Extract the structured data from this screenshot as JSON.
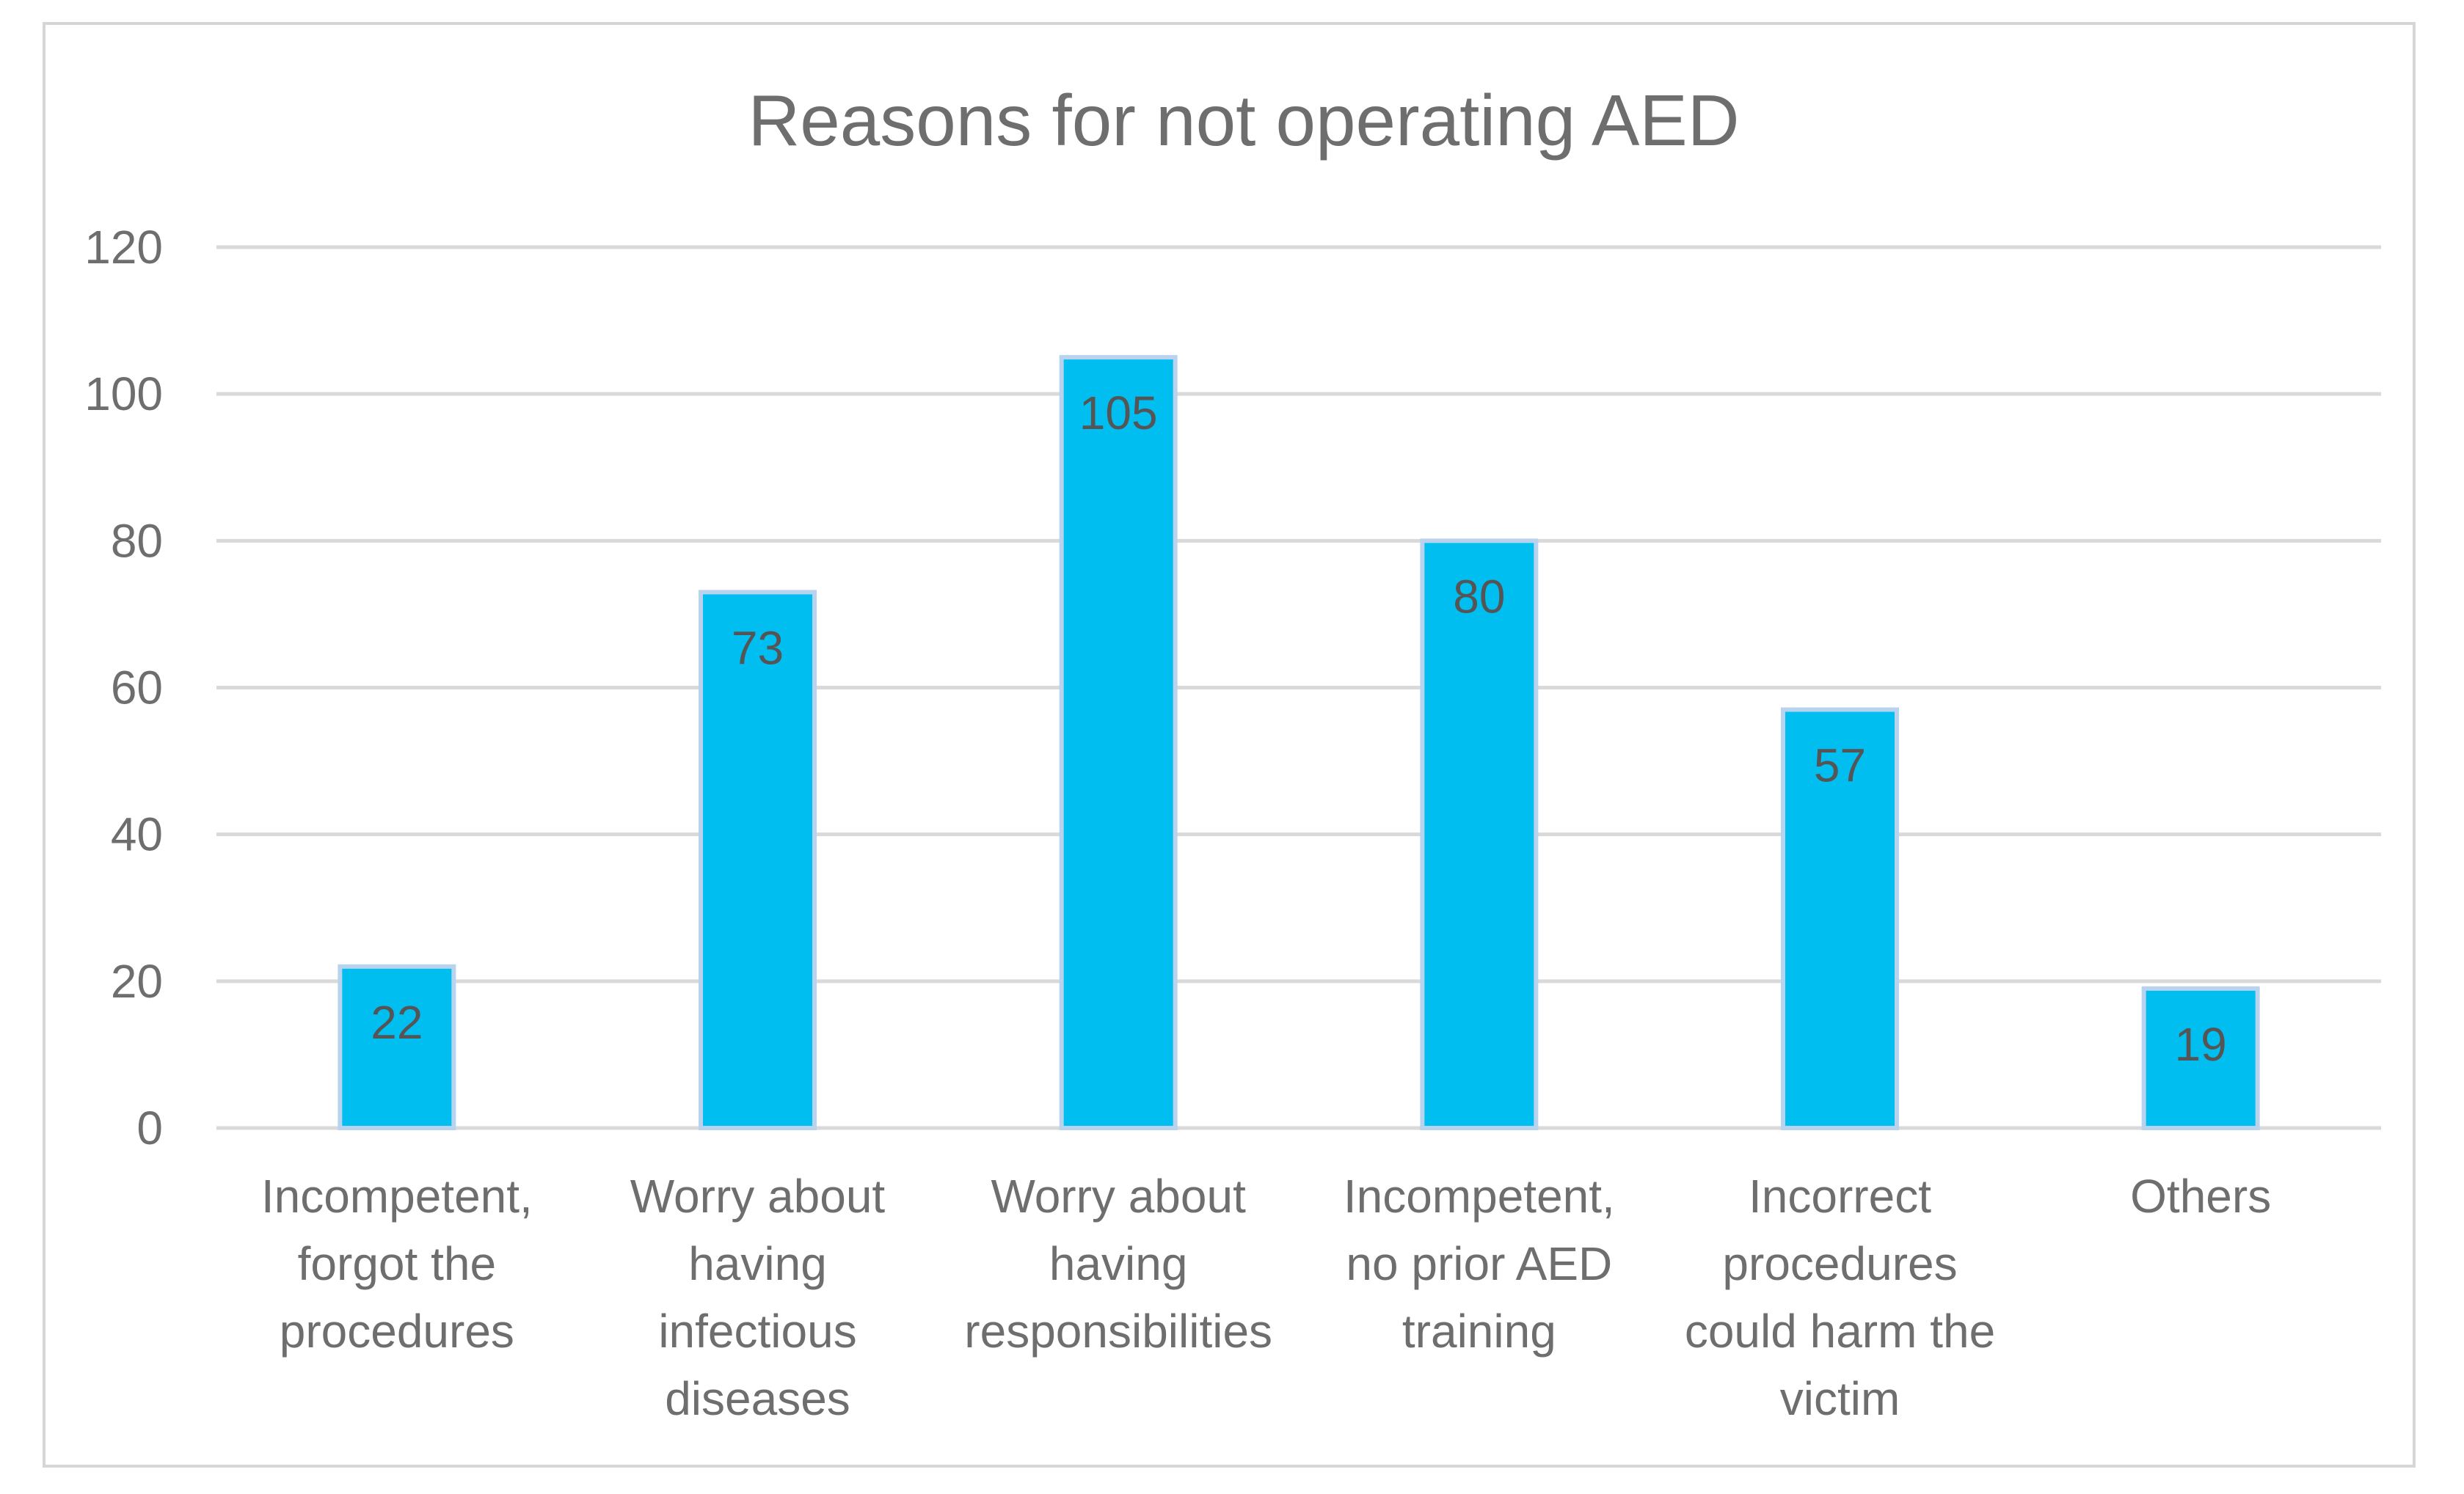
{
  "chart_data": {
    "type": "bar",
    "title": "Reasons for not operating AED",
    "xlabel": "",
    "ylabel": "",
    "ylim": [
      0,
      120
    ],
    "yticks": [
      0,
      20,
      40,
      60,
      80,
      100,
      120
    ],
    "grid": true,
    "legend": "none",
    "categories": [
      [
        "Incompetent,",
        "forgot the",
        "procedures"
      ],
      [
        "Worry about",
        "having",
        "infectious",
        "diseases"
      ],
      [
        "Worry about",
        "having",
        "responsibilities"
      ],
      [
        "Incompetent,",
        "no prior AED",
        "training"
      ],
      [
        "Incorrect",
        "procedures",
        "could harm the",
        "victim"
      ],
      [
        "Others"
      ]
    ],
    "values": [
      22,
      73,
      105,
      80,
      57,
      19
    ],
    "data_labels": [
      "22",
      "73",
      "105",
      "80",
      "57",
      "19"
    ],
    "colors": {
      "bar_fill": "#00bef0",
      "bar_stroke": "#b9d3ee",
      "gridline": "#d9d9d9",
      "text": "#6e6e6e",
      "frame": "#d6d6d6"
    }
  }
}
